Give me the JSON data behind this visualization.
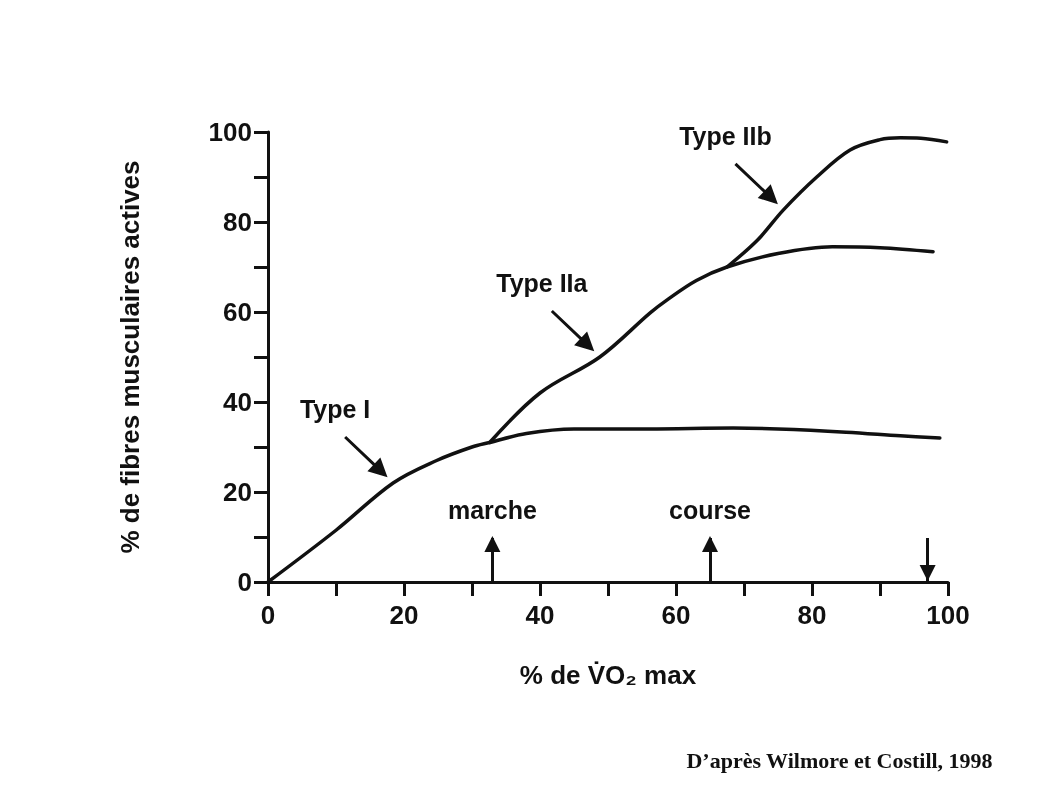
{
  "chart_data": {
    "type": "line",
    "xlabel": "% de V̇O₂ max",
    "ylabel": "% de fibres musculaires actives",
    "series": [
      {
        "name": "Type I",
        "color": "#111111",
        "x": [
          0,
          10,
          18.4,
          24.8,
          30,
          32.6,
          38,
          45,
          49,
          56,
          68.4,
          75,
          85,
          93,
          98.8
        ],
        "values": [
          0,
          11.5,
          22,
          27,
          30,
          31,
          33,
          34,
          34,
          34,
          34.2,
          34,
          33.3,
          32.5,
          32
        ]
      },
      {
        "name": "Type IIa",
        "color": "#111111",
        "x": [
          32.6,
          40,
          48.8,
          56.2,
          58.7,
          63,
          67.5,
          75,
          83,
          90,
          97.8
        ],
        "values": [
          31,
          42,
          50,
          59.8,
          62.7,
          67,
          70,
          73,
          74.5,
          74.3,
          73.4
        ]
      },
      {
        "name": "Type IIb",
        "color": "#111111",
        "x": [
          67.5,
          72,
          75.8,
          80.7,
          85.6,
          90,
          93,
          96,
          99.8
        ],
        "values": [
          70,
          76,
          82.7,
          90,
          96,
          98.3,
          98.7,
          98.6,
          97.8
        ]
      }
    ],
    "xlim": [
      0,
      100
    ],
    "ylim": [
      0,
      100
    ],
    "xticks": [
      0,
      {
        "value": 10,
        "label": null
      },
      20,
      {
        "value": 30,
        "label": null
      },
      40,
      {
        "value": 50,
        "label": null
      },
      60,
      {
        "value": 70,
        "label": null
      },
      80,
      {
        "value": 90,
        "label": null
      },
      100
    ],
    "yticks": [
      0,
      {
        "value": 10,
        "label": null
      },
      20,
      {
        "value": 30,
        "label": null
      },
      40,
      {
        "value": 50,
        "label": null
      },
      60,
      {
        "value": 70,
        "label": null
      },
      80,
      {
        "value": 90,
        "label": null
      },
      100
    ],
    "grid": false,
    "marker": "none",
    "line_style": "solid",
    "ref_lines": [
      {
        "axis": "x",
        "value": 33,
        "label": "marche"
      },
      {
        "axis": "x",
        "value": 65,
        "label": "course"
      },
      {
        "axis": "x",
        "value": 97
      }
    ],
    "annotations": [
      "D’après Wilmore et Costill, 1998"
    ]
  }
}
